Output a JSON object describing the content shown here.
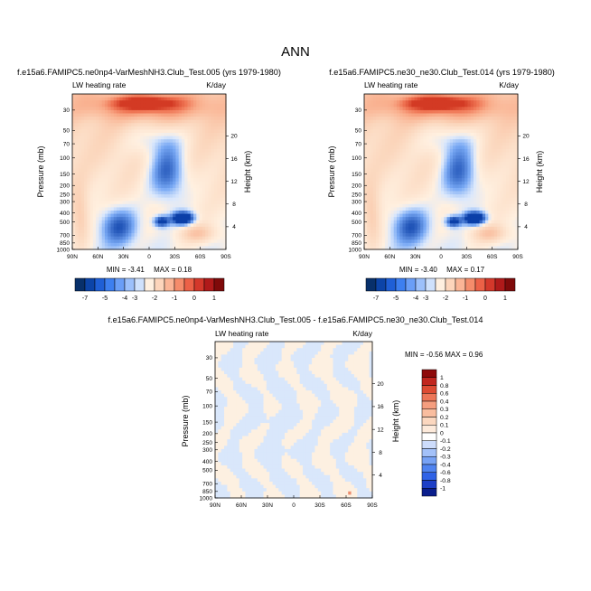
{
  "figure": {
    "title": "ANN"
  },
  "palettes": {
    "abs": [
      "#08306b",
      "#0c44a8",
      "#1f5fd6",
      "#3d7ff0",
      "#6a9ef7",
      "#9cc0fb",
      "#cfe1fc",
      "#fff0e0",
      "#fdd5bb",
      "#fbb596",
      "#f58c6b",
      "#ec6147",
      "#d4382b",
      "#b01a1a",
      "#7f0a0a"
    ],
    "diff": [
      "#0a1e8c",
      "#1d3fc7",
      "#2f62e6",
      "#4f83f0",
      "#77a2f5",
      "#a3c1f9",
      "#cddcfb",
      "#ffffff",
      "#fdeadb",
      "#fbd7bf",
      "#f9bd9f",
      "#f59e7f",
      "#ec7658",
      "#dd4b33",
      "#c1261e",
      "#8e0a0a"
    ]
  },
  "chart_data": [
    {
      "id": "top-left",
      "type": "heatmap",
      "title": "f.e15a6.FAMIPC5.ne0np4-VarMeshNH3.Club_Test.005 (yrs 1979-1980)",
      "left_label": "LW heating rate",
      "right_label": "K/day",
      "ylabel": "Pressure (mb)",
      "y2label": "Height (km)",
      "x_ticks": [
        "90N",
        "60N",
        "30N",
        "0",
        "30S",
        "60S",
        "90S"
      ],
      "y_ticks": [
        1000,
        850,
        700,
        500,
        400,
        300,
        250,
        200,
        150,
        100,
        70,
        50,
        30
      ],
      "y2_ticks": [
        4,
        8,
        12,
        16,
        20
      ],
      "min_text": "MIN = -3.41",
      "max_text": "MAX =  0.18",
      "min": -3.41,
      "max": 0.18,
      "colorbar_labels": [
        "-7",
        "-5",
        "-4",
        "-3",
        "-2",
        "-1",
        "0",
        "1"
      ]
    },
    {
      "id": "top-right",
      "type": "heatmap",
      "title": "f.e15a6.FAMIPC5.ne30_ne30.Club_Test.014 (yrs 1979-1980)",
      "left_label": "LW heating rate",
      "right_label": "K/day",
      "ylabel": "Pressure (mb)",
      "y2label": "Height (km)",
      "x_ticks": [
        "90N",
        "60N",
        "30N",
        "0",
        "30S",
        "60S",
        "90S"
      ],
      "y_ticks": [
        1000,
        850,
        700,
        500,
        400,
        300,
        250,
        200,
        150,
        100,
        70,
        50,
        30
      ],
      "y2_ticks": [
        4,
        8,
        12,
        16,
        20
      ],
      "min_text": "MIN = -3.40",
      "max_text": "MAX =  0.17",
      "min": -3.4,
      "max": 0.17,
      "colorbar_labels": [
        "-7",
        "-5",
        "-4",
        "-3",
        "-2",
        "-1",
        "0",
        "1"
      ]
    },
    {
      "id": "difference",
      "type": "heatmap",
      "title": "f.e15a6.FAMIPC5.ne0np4-VarMeshNH3.Club_Test.005 - f.e15a6.FAMIPC5.ne30_ne30.Club_Test.014",
      "left_label": "LW heating rate",
      "right_label": "K/day",
      "ylabel": "Pressure (mb)",
      "y2label": "Height (km)",
      "x_ticks": [
        "90N",
        "60N",
        "30N",
        "0",
        "30S",
        "60S",
        "90S"
      ],
      "y_ticks": [
        1000,
        850,
        700,
        500,
        400,
        300,
        250,
        200,
        150,
        100,
        70,
        50,
        30
      ],
      "y2_ticks": [
        4,
        8,
        12,
        16,
        20
      ],
      "minmax_text": "MIN = -0.56  MAX =  0.96",
      "min": -0.56,
      "max": 0.96,
      "colorbar_labels": [
        "1",
        "0.8",
        "0.6",
        "0.4",
        "0.3",
        "0.2",
        "0.1",
        "0",
        "-0.1",
        "-0.2",
        "-0.3",
        "-0.4",
        "-0.6",
        "-0.8",
        "-1"
      ]
    }
  ]
}
